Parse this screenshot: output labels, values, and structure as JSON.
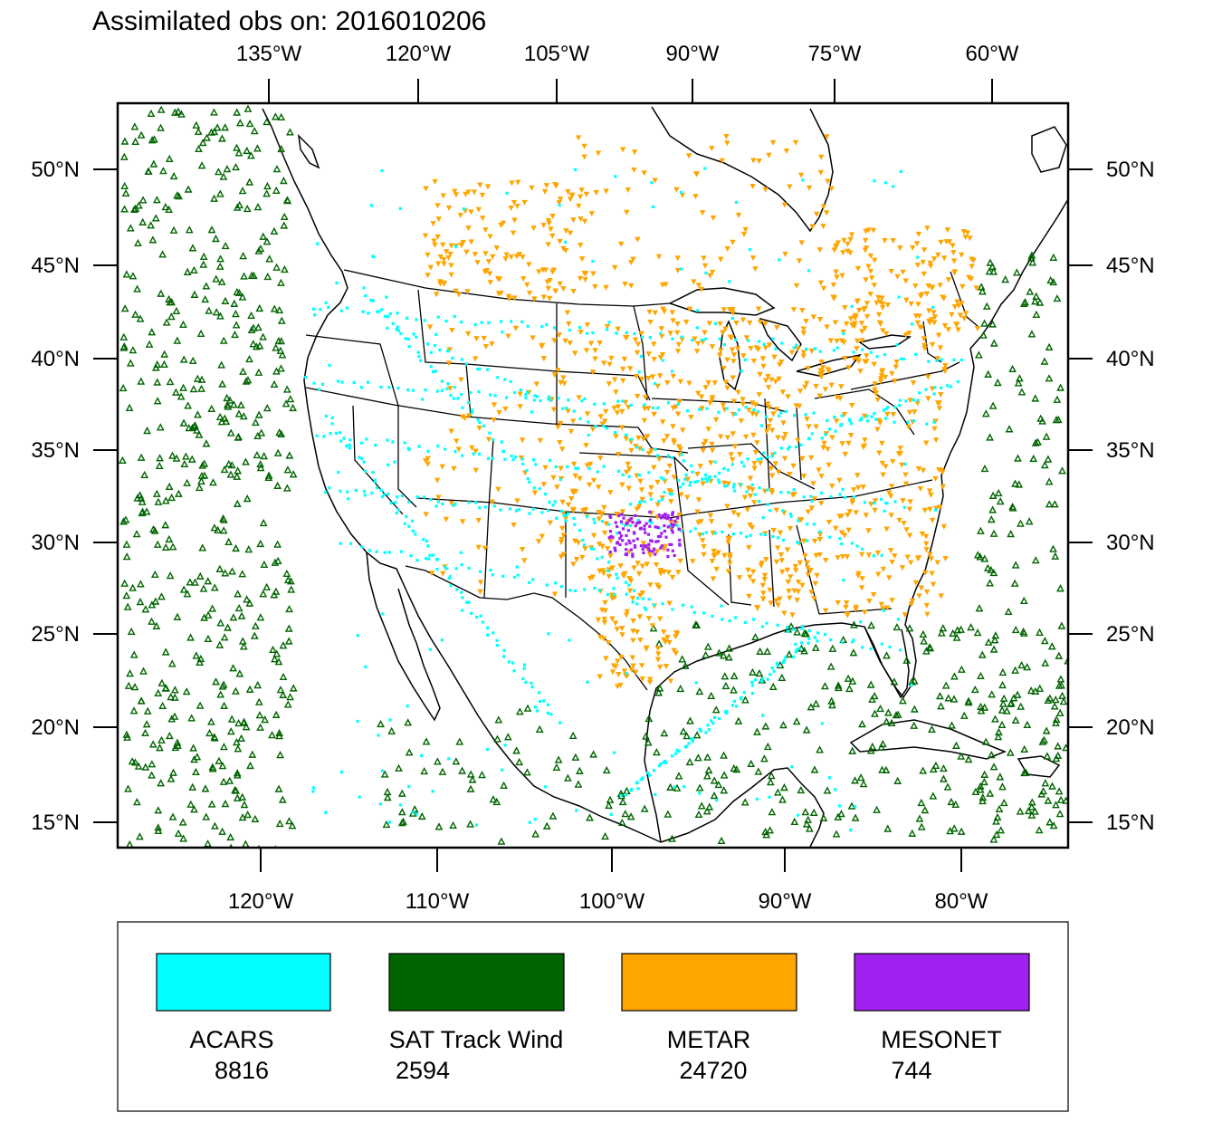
{
  "title": "Assimilated obs on: 2016010206",
  "axes": {
    "top_lon_labels": [
      "135°W",
      "120°W",
      "105°W",
      "90°W",
      "75°W",
      "60°W"
    ],
    "bottom_lon_labels": [
      "120°W",
      "110°W",
      "100°W",
      "90°W",
      "80°W"
    ],
    "lat_labels": [
      "50°N",
      "45°N",
      "40°N",
      "35°N",
      "30°N",
      "25°N",
      "20°N",
      "15°N"
    ]
  },
  "colors": {
    "acars": "#00ffff",
    "sat_track_wind": "#006400",
    "metar": "#ffa500",
    "mesonet": "#a020f0"
  },
  "legend": [
    {
      "key": "acars",
      "label": "ACARS",
      "count": "8816"
    },
    {
      "key": "sat_track_wind",
      "label": "SAT Track Wind",
      "count": "2594"
    },
    {
      "key": "metar",
      "label": "METAR",
      "count": "24720"
    },
    {
      "key": "mesonet",
      "label": "MESONET",
      "count": "744"
    }
  ]
}
